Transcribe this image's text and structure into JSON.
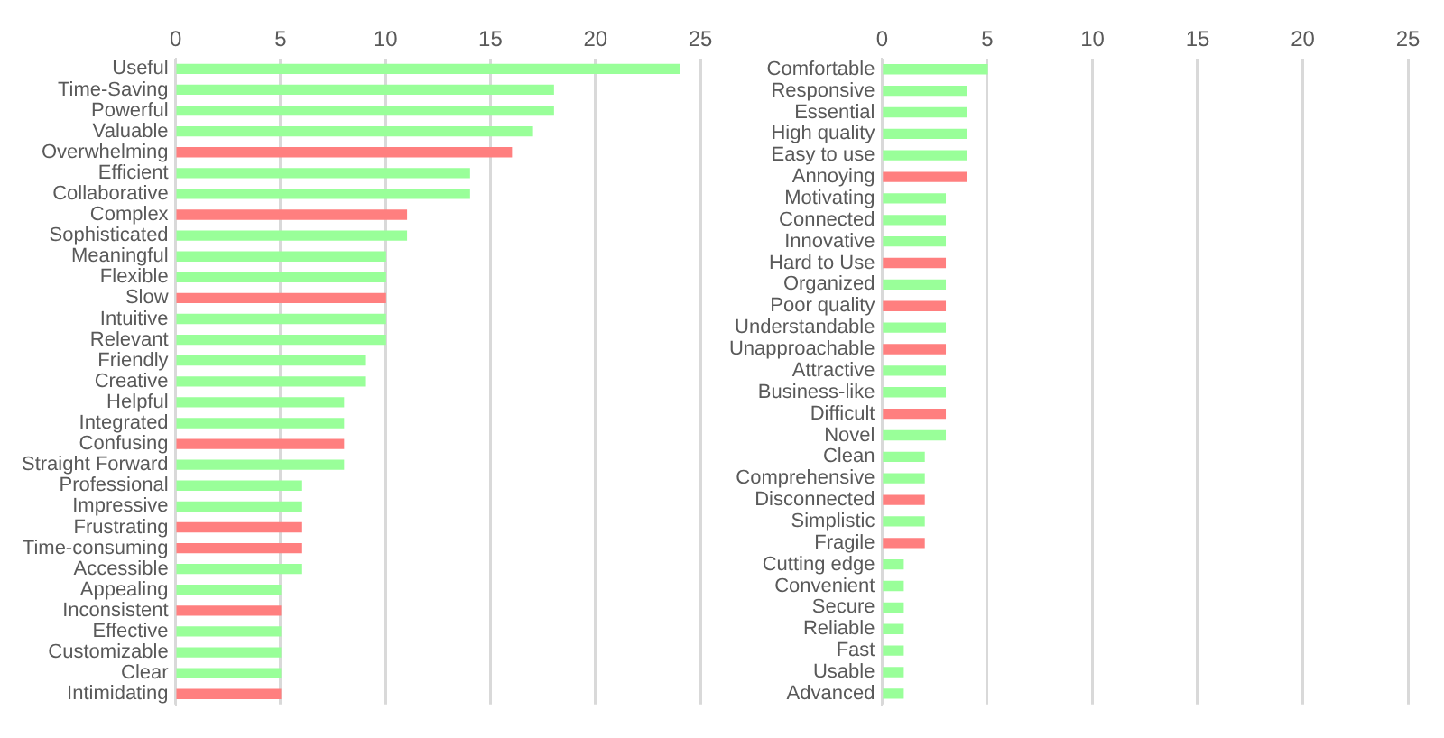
{
  "chart_data": [
    {
      "type": "bar",
      "orientation": "horizontal",
      "categories": [
        "Useful",
        "Time-Saving",
        "Powerful",
        "Valuable",
        "Overwhelming",
        "Efficient",
        "Collaborative",
        "Complex",
        "Sophisticated",
        "Meaningful",
        "Flexible",
        "Slow",
        "Intuitive",
        "Relevant",
        "Friendly",
        "Creative",
        "Helpful",
        "Integrated",
        "Confusing",
        "Straight Forward",
        "Professional",
        "Impressive",
        "Frustrating",
        "Time-consuming",
        "Accessible",
        "Appealing",
        "Inconsistent",
        "Effective",
        "Customizable",
        "Clear",
        "Intimidating"
      ],
      "values": [
        24,
        18,
        18,
        17,
        16,
        14,
        14,
        11,
        11,
        10,
        10,
        10,
        10,
        10,
        9,
        9,
        8,
        8,
        8,
        8,
        6,
        6,
        6,
        6,
        6,
        5,
        5,
        5,
        5,
        5,
        5
      ],
      "colors": [
        "#99ff99",
        "#99ff99",
        "#99ff99",
        "#99ff99",
        "#ff7f7f",
        "#99ff99",
        "#99ff99",
        "#ff7f7f",
        "#99ff99",
        "#99ff99",
        "#99ff99",
        "#ff7f7f",
        "#99ff99",
        "#99ff99",
        "#99ff99",
        "#99ff99",
        "#99ff99",
        "#99ff99",
        "#ff7f7f",
        "#99ff99",
        "#99ff99",
        "#99ff99",
        "#ff7f7f",
        "#ff7f7f",
        "#99ff99",
        "#99ff99",
        "#ff7f7f",
        "#99ff99",
        "#99ff99",
        "#99ff99",
        "#ff7f7f"
      ],
      "xlim": [
        0,
        25
      ],
      "xticks": [
        0,
        5,
        10,
        15,
        20,
        25
      ],
      "grid": "x",
      "legend": false
    },
    {
      "type": "bar",
      "orientation": "horizontal",
      "categories": [
        "Comfortable",
        "Responsive",
        "Essential",
        "High quality",
        "Easy to use",
        "Annoying",
        "Motivating",
        "Connected",
        "Innovative",
        "Hard to Use",
        "Organized",
        "Poor quality",
        "Understandable",
        "Unapproachable",
        "Attractive",
        "Business-like",
        "Difficult",
        "Novel",
        "Clean",
        "Comprehensive",
        "Disconnected",
        "Simplistic",
        "Fragile",
        "Cutting edge",
        "Convenient",
        "Secure",
        "Reliable",
        "Fast",
        "Usable",
        "Advanced"
      ],
      "values": [
        5,
        4,
        4,
        4,
        4,
        4,
        3,
        3,
        3,
        3,
        3,
        3,
        3,
        3,
        3,
        3,
        3,
        3,
        2,
        2,
        2,
        2,
        2,
        1,
        1,
        1,
        1,
        1,
        1,
        1
      ],
      "colors": [
        "#99ff99",
        "#99ff99",
        "#99ff99",
        "#99ff99",
        "#99ff99",
        "#ff7f7f",
        "#99ff99",
        "#99ff99",
        "#99ff99",
        "#ff7f7f",
        "#99ff99",
        "#ff7f7f",
        "#99ff99",
        "#ff7f7f",
        "#99ff99",
        "#99ff99",
        "#ff7f7f",
        "#99ff99",
        "#99ff99",
        "#99ff99",
        "#ff7f7f",
        "#99ff99",
        "#ff7f7f",
        "#99ff99",
        "#99ff99",
        "#99ff99",
        "#99ff99",
        "#99ff99",
        "#99ff99",
        "#99ff99"
      ],
      "xlim": [
        0,
        25
      ],
      "xticks": [
        0,
        5,
        10,
        15,
        20,
        25
      ],
      "grid": "x",
      "legend": false
    }
  ]
}
